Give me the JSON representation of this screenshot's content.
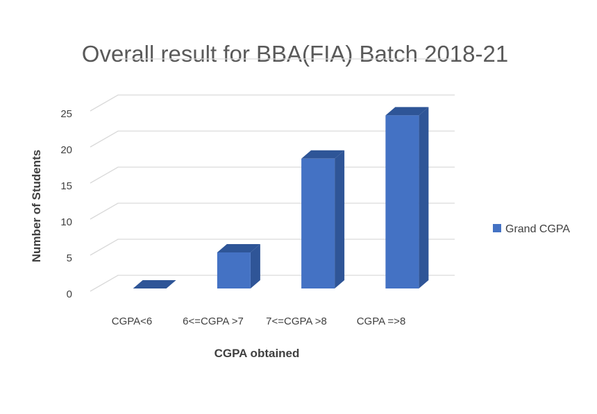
{
  "chart_data": {
    "type": "bar",
    "title": "Overall result for BBA(FIA) Batch 2018-21",
    "xlabel": "CGPA obtained",
    "ylabel": "Number of Students",
    "categories": [
      "CGPA<6",
      "6<=CGPA >7",
      "7<=CGPA >8",
      "CGPA =>8"
    ],
    "series": [
      {
        "name": "Grand CGPA",
        "values": [
          0,
          5,
          18,
          24
        ]
      }
    ],
    "ylim": [
      0,
      25
    ],
    "yticks": [
      "0",
      "5",
      "10",
      "15",
      "20",
      "25"
    ],
    "grid": true,
    "legend": "right",
    "three_d": true,
    "colors": {
      "bar_front": "#4472c4",
      "bar_side": "#2f5597",
      "bar_top": "#2e5597",
      "grid": "#d9d9d9"
    }
  }
}
